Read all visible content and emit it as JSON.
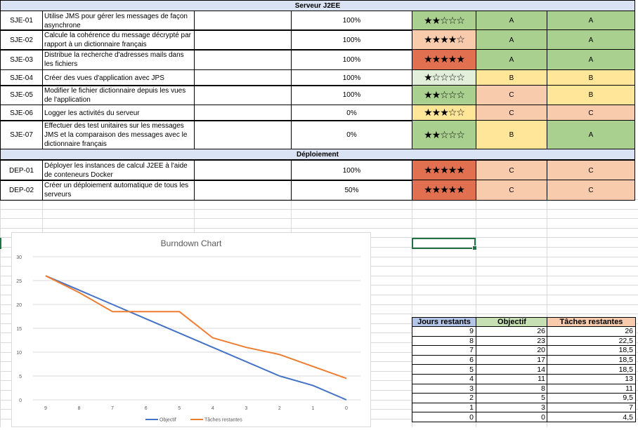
{
  "sections": [
    {
      "title": "Serveur J2EE",
      "rows": [
        {
          "id": "SJE-01",
          "desc": "Utilise JMS pour gérer les messages de façon asynchrone",
          "progress": "100%",
          "stars": "★★☆☆☆",
          "stars_count": 2,
          "diff": "hard",
          "c1": "A",
          "c2": "A"
        },
        {
          "id": "SJE-02",
          "desc": "Calcule la cohérence du message décrypté par rapport à un dictionnaire français",
          "progress": "100%",
          "stars": "★★★★☆",
          "stars_count": 4,
          "diff": "easy",
          "c1": "A",
          "c2": "A"
        },
        {
          "id": "SJE-03",
          "desc": "Distribue la recherche d'adresses mails dans les fichiers",
          "progress": "100%",
          "stars": "★★★★★",
          "stars_count": 5,
          "diff": "red",
          "c1": "A",
          "c2": "A"
        },
        {
          "id": "SJE-04",
          "desc": "Créer des vues d'application avec JPS",
          "progress": "100%",
          "stars": "★☆☆☆☆",
          "stars_count": 1,
          "diff": "pale",
          "c1": "B",
          "c2": "B"
        },
        {
          "id": "SJE-05",
          "desc": "Modifier le fichier dictionnaire depuis les vues de l'application",
          "progress": "100%",
          "stars": "★★☆☆☆",
          "stars_count": 2,
          "diff": "hard",
          "c1": "C",
          "c2": "B"
        },
        {
          "id": "SJE-06",
          "desc": "Logger les activités du serveur",
          "progress": "0%",
          "stars": "★★★☆☆",
          "stars_count": 3,
          "diff": "yellow",
          "c1": "C",
          "c2": "C"
        },
        {
          "id": "SJE-07",
          "desc": "Effectuer des test unitaires sur les messages JMS et la comparaison des messages avec le dictionnaire français",
          "progress": "0%",
          "stars": "★★☆☆☆",
          "stars_count": 2,
          "diff": "hard",
          "c1": "B",
          "c2": "A"
        }
      ]
    },
    {
      "title": "Déploiement",
      "rows": [
        {
          "id": "DEP-01",
          "desc": "Déployer les instances de calcul J2EE à l'aide de conteneurs Docker",
          "progress": "100%",
          "stars": "★★★★★",
          "stars_count": 5,
          "diff": "red",
          "c1": "C",
          "c2": "C"
        },
        {
          "id": "DEP-02",
          "desc": "Créer un déploiement automatique de tous les serveurs",
          "progress": "50%",
          "stars": "★★★★★",
          "stars_count": 5,
          "diff": "red",
          "c1": "C",
          "c2": "C"
        }
      ]
    }
  ],
  "colors": {
    "grade_A": "#a9d08e",
    "grade_B": "#ffe699",
    "grade_C": "#f8cbad",
    "stars_hard": "#a9d08e",
    "stars_easy": "#f8cbad",
    "stars_red": "#e07050",
    "stars_pale": "#e2efda",
    "stars_yellow": "#ffe699",
    "header_blue": "#b4c6e7",
    "header_green": "#c6e0b4",
    "header_orange": "#f8cbad",
    "series_objectif": "#4472c4",
    "series_taches": "#ed7d31",
    "selection": "#217346"
  },
  "burndown_table": {
    "headers": [
      "Jours restants",
      "Objectif",
      "Tâches restantes"
    ],
    "rows": [
      [
        "9",
        "26",
        "26"
      ],
      [
        "8",
        "23",
        "22,5"
      ],
      [
        "7",
        "20",
        "18,5"
      ],
      [
        "6",
        "17",
        "18,5"
      ],
      [
        "5",
        "14",
        "18,5"
      ],
      [
        "4",
        "11",
        "13"
      ],
      [
        "3",
        "8",
        "11"
      ],
      [
        "2",
        "5",
        "9,5"
      ],
      [
        "1",
        "3",
        "7"
      ],
      [
        "0",
        "0",
        "4,5"
      ]
    ]
  },
  "chart_data": {
    "type": "line",
    "title": "Burndown Chart",
    "categories": [
      "9",
      "8",
      "7",
      "6",
      "5",
      "4",
      "3",
      "2",
      "1",
      "0"
    ],
    "series": [
      {
        "name": "Objectif",
        "values": [
          26,
          23,
          20,
          17,
          14,
          11,
          8,
          5,
          3,
          0
        ],
        "color": "#4472c4"
      },
      {
        "name": "Tâches restantes",
        "values": [
          26,
          22.5,
          18.5,
          18.5,
          18.5,
          13,
          11,
          9.5,
          7,
          4.5
        ],
        "color": "#ed7d31"
      }
    ],
    "yticks": [
      "0",
      "5",
      "10",
      "15",
      "20",
      "25",
      "30"
    ],
    "ylim": [
      0,
      30
    ],
    "grid": true,
    "legend": "bottom"
  }
}
